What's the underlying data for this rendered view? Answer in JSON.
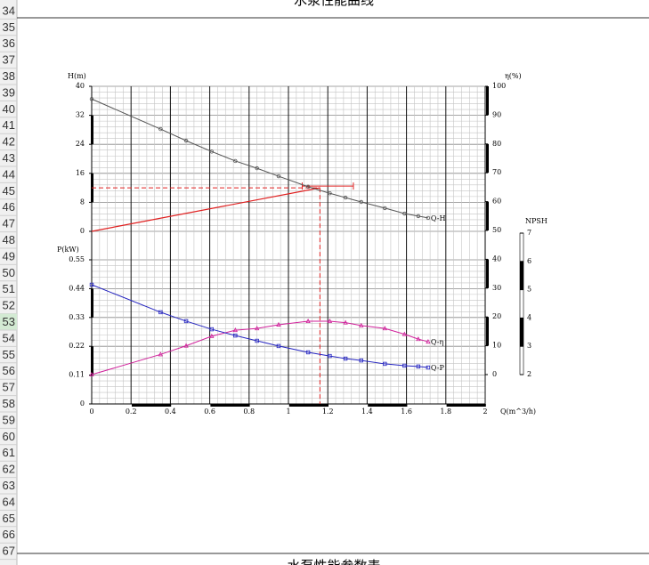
{
  "sheet": {
    "title": "水泵性能曲线",
    "footer": "水泵性能参数表",
    "rows": [
      "34",
      "35",
      "36",
      "37",
      "38",
      "39",
      "40",
      "41",
      "42",
      "43",
      "44",
      "45",
      "46",
      "47",
      "48",
      "49",
      "50",
      "51",
      "52",
      "53",
      "54",
      "55",
      "56",
      "57",
      "58",
      "59",
      "60",
      "61",
      "62",
      "63",
      "64",
      "65",
      "66",
      "67"
    ],
    "active_row": "53"
  },
  "chart_data": {
    "type": "line",
    "x_label": "Q(m^3/h)",
    "xlim": [
      0,
      2
    ],
    "xticks": [
      0,
      0.2,
      0.4,
      0.6,
      0.8,
      1,
      1.2,
      1.4,
      1.6,
      1.8,
      2
    ],
    "axes": {
      "H": {
        "label": "H(m)",
        "lim": [
          0,
          40
        ],
        "ticks": [
          0,
          8,
          16,
          24,
          32,
          40
        ]
      },
      "P": {
        "label": "P(kW)",
        "lim": [
          0,
          0.55
        ],
        "ticks": [
          0,
          0.11,
          0.22,
          0.33,
          0.44,
          0.55
        ]
      },
      "eta": {
        "label": "η(%)",
        "lim": [
          0,
          100
        ],
        "ticks": [
          0,
          10,
          20,
          30,
          40,
          50,
          60,
          70,
          80,
          90,
          100
        ]
      },
      "NPSH": {
        "label": "NPSH",
        "lim": [
          2,
          7
        ],
        "ticks": [
          2,
          3,
          4,
          5,
          6,
          7
        ]
      }
    },
    "x": [
      0,
      0.35,
      0.48,
      0.61,
      0.73,
      0.84,
      0.95,
      1.1,
      1.21,
      1.29,
      1.37,
      1.49,
      1.59,
      1.66,
      1.71
    ],
    "series": [
      {
        "name": "Q-H",
        "axis": "H",
        "color": "#555555",
        "marker": "circle",
        "values": [
          36.5,
          28.2,
          25,
          22,
          19.4,
          17.4,
          15.2,
          12.3,
          10.5,
          9.3,
          8.1,
          6.4,
          4.9,
          4.2,
          3.7
        ]
      },
      {
        "name": "Q-η",
        "axis": "eta",
        "color": "#d0209a",
        "marker": "triangle",
        "values": [
          0,
          7,
          10,
          13.3,
          15.4,
          16,
          17.3,
          18.5,
          18.5,
          18,
          17,
          16,
          14,
          12.3,
          11.4
        ]
      },
      {
        "name": "Q-P",
        "axis": "P",
        "color": "#2424c0",
        "marker": "square",
        "values": [
          0.455,
          0.35,
          0.316,
          0.285,
          0.261,
          0.241,
          0.221,
          0.197,
          0.183,
          0.173,
          0.166,
          0.153,
          0.146,
          0.143,
          0.139
        ]
      }
    ],
    "duty_point": {
      "x": 1.16,
      "y": 12,
      "range": [
        1.07,
        1.33
      ],
      "color": "#e02020"
    },
    "grid": true
  }
}
